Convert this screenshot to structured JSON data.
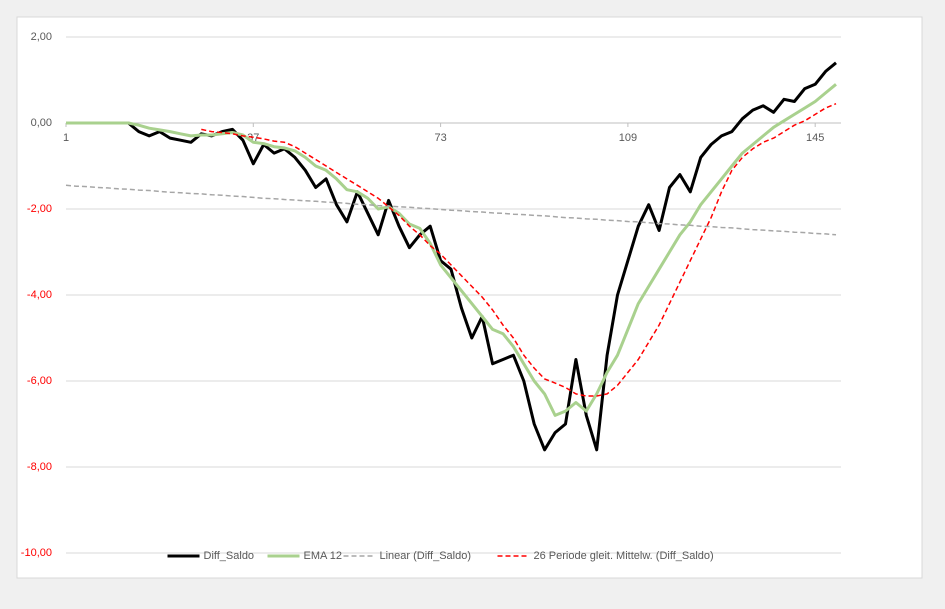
{
  "chart_data": {
    "type": "line",
    "x": [
      1,
      3,
      5,
      7,
      9,
      11,
      13,
      15,
      17,
      19,
      21,
      23,
      25,
      27,
      29,
      31,
      33,
      35,
      37,
      39,
      41,
      43,
      45,
      47,
      49,
      51,
      53,
      55,
      57,
      59,
      61,
      63,
      65,
      67,
      69,
      71,
      73,
      75,
      77,
      79,
      81,
      83,
      85,
      87,
      89,
      91,
      93,
      95,
      97,
      99,
      101,
      103,
      105,
      107,
      109,
      111,
      113,
      115,
      117,
      119,
      121,
      123,
      125,
      127,
      129,
      131,
      133,
      135,
      137,
      139,
      141,
      143,
      145,
      147,
      149
    ],
    "xlim": [
      1,
      149
    ],
    "xticks": [
      1,
      37,
      73,
      109,
      145
    ],
    "ylim": [
      -10,
      2
    ],
    "yticks": [
      {
        "value": 2,
        "label": "2,00"
      },
      {
        "value": 0,
        "label": "0,00"
      },
      {
        "value": -2,
        "label": "-2,00"
      },
      {
        "value": -4,
        "label": "-4,00"
      },
      {
        "value": -6,
        "label": "-6,00"
      },
      {
        "value": -8,
        "label": "-8,00"
      },
      {
        "value": -10,
        "label": "-10,00"
      }
    ],
    "grid": true,
    "legend": "bottom",
    "tick_label_color": "#595959",
    "negative_tick_label_color": "#ff0000",
    "series": [
      {
        "name": "Diff_Saldo",
        "color": "#000000",
        "width": 3,
        "dash": "solid",
        "values": [
          0,
          0,
          0,
          0,
          0,
          0,
          0,
          -0.2,
          -0.3,
          -0.2,
          -0.35,
          -0.4,
          -0.45,
          -0.25,
          -0.3,
          -0.2,
          -0.15,
          -0.4,
          -0.95,
          -0.5,
          -0.7,
          -0.6,
          -0.8,
          -1.1,
          -1.5,
          -1.3,
          -1.9,
          -2.3,
          -1.6,
          -2.1,
          -2.6,
          -1.8,
          -2.4,
          -2.9,
          -2.6,
          -2.4,
          -3.2,
          -3.4,
          -4.3,
          -5.0,
          -4.5,
          -5.6,
          -5.5,
          -5.4,
          -6.0,
          -7.0,
          -7.6,
          -7.2,
          -7.0,
          -5.5,
          -6.8,
          -7.6,
          -5.4,
          -4.0,
          -3.2,
          -2.4,
          -1.9,
          -2.5,
          -1.5,
          -1.2,
          -1.6,
          -0.8,
          -0.5,
          -0.3,
          -0.2,
          0.1,
          0.3,
          0.4,
          0.25,
          0.55,
          0.5,
          0.8,
          0.9,
          1.2,
          1.4
        ]
      },
      {
        "name": "EMA 12",
        "color": "#a9d18e",
        "width": 3,
        "dash": "solid",
        "values": [
          0,
          0,
          0,
          0,
          0,
          0,
          0,
          -0.05,
          -0.12,
          -0.16,
          -0.2,
          -0.25,
          -0.3,
          -0.28,
          -0.28,
          -0.25,
          -0.22,
          -0.28,
          -0.45,
          -0.48,
          -0.55,
          -0.58,
          -0.65,
          -0.8,
          -1.0,
          -1.1,
          -1.3,
          -1.55,
          -1.6,
          -1.75,
          -2.0,
          -1.95,
          -2.1,
          -2.35,
          -2.45,
          -2.8,
          -3.3,
          -3.6,
          -3.9,
          -4.2,
          -4.5,
          -4.8,
          -4.9,
          -5.2,
          -5.6,
          -6.0,
          -6.3,
          -6.8,
          -6.7,
          -6.5,
          -6.7,
          -6.3,
          -5.8,
          -5.4,
          -4.8,
          -4.2,
          -3.8,
          -3.4,
          -3.0,
          -2.6,
          -2.3,
          -1.9,
          -1.6,
          -1.3,
          -1.0,
          -0.7,
          -0.5,
          -0.3,
          -0.1,
          0.05,
          0.2,
          0.35,
          0.5,
          0.7,
          0.9
        ]
      },
      {
        "name": "Linear (Diff_Saldo)",
        "color": "#a6a6a6",
        "width": 1.5,
        "dash": "dashed",
        "values": [
          -1.45,
          -1.47,
          -1.48,
          -1.5,
          -1.51,
          -1.53,
          -1.54,
          -1.56,
          -1.57,
          -1.59,
          -1.61,
          -1.62,
          -1.64,
          -1.65,
          -1.67,
          -1.68,
          -1.7,
          -1.71,
          -1.73,
          -1.75,
          -1.76,
          -1.78,
          -1.79,
          -1.81,
          -1.82,
          -1.84,
          -1.85,
          -1.87,
          -1.89,
          -1.9,
          -1.92,
          -1.93,
          -1.95,
          -1.96,
          -1.98,
          -1.99,
          -2.01,
          -2.03,
          -2.04,
          -2.06,
          -2.07,
          -2.09,
          -2.1,
          -2.12,
          -2.13,
          -2.15,
          -2.16,
          -2.18,
          -2.2,
          -2.21,
          -2.23,
          -2.24,
          -2.26,
          -2.27,
          -2.29,
          -2.3,
          -2.32,
          -2.34,
          -2.35,
          -2.37,
          -2.38,
          -2.4,
          -2.41,
          -2.43,
          -2.44,
          -2.46,
          -2.48,
          -2.49,
          -2.51,
          -2.52,
          -2.54,
          -2.55,
          -2.57,
          -2.58,
          -2.6
        ]
      },
      {
        "name": "26 Periode gleit. Mittelw. (Diff_Saldo)",
        "color": "#ff0000",
        "width": 1.5,
        "dash": "dashed",
        "values": [
          null,
          null,
          null,
          null,
          null,
          null,
          null,
          null,
          null,
          null,
          null,
          null,
          null,
          -0.15,
          -0.2,
          -0.22,
          -0.25,
          -0.3,
          -0.33,
          -0.37,
          -0.42,
          -0.45,
          -0.55,
          -0.7,
          -0.85,
          -1.0,
          -1.15,
          -1.3,
          -1.45,
          -1.6,
          -1.75,
          -1.95,
          -2.15,
          -2.4,
          -2.6,
          -2.85,
          -3.05,
          -3.3,
          -3.55,
          -3.8,
          -4.05,
          -4.35,
          -4.7,
          -5.0,
          -5.4,
          -5.7,
          -5.95,
          -6.05,
          -6.15,
          -6.3,
          -6.35,
          -6.35,
          -6.3,
          -6.1,
          -5.8,
          -5.5,
          -5.1,
          -4.7,
          -4.2,
          -3.7,
          -3.2,
          -2.7,
          -2.2,
          -1.6,
          -1.1,
          -0.8,
          -0.6,
          -0.45,
          -0.35,
          -0.2,
          -0.05,
          0.05,
          0.2,
          0.35,
          0.45
        ]
      }
    ]
  }
}
